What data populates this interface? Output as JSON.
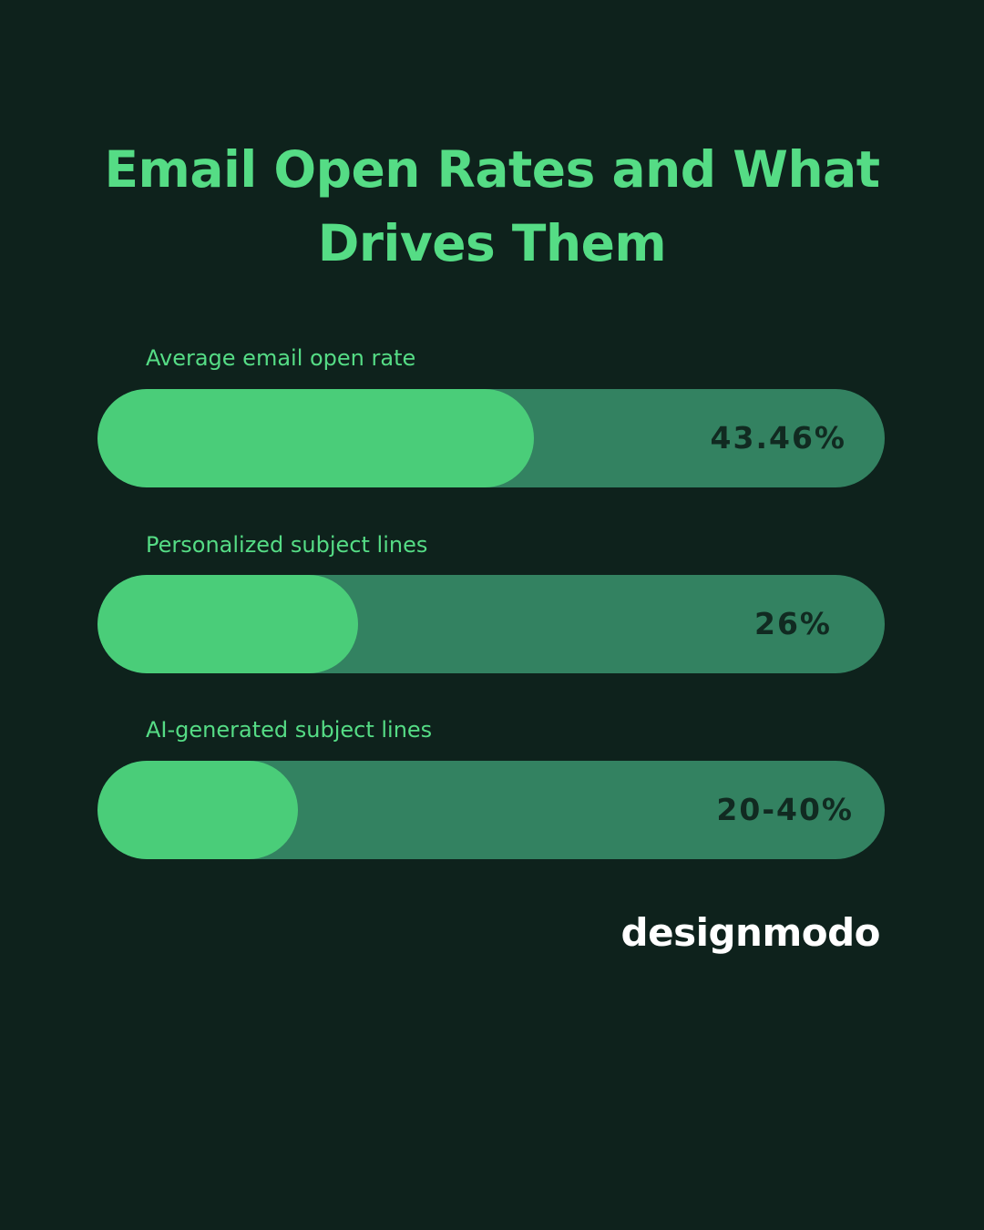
{
  "title_line1": "Email Open Rates and What",
  "title_line2": "Drives Them",
  "colors": {
    "background": "#0e221c",
    "accent": "#4acd79",
    "track": "#338261",
    "title": "#55dc85",
    "value_text": "#112a21"
  },
  "chart_data": {
    "type": "bar",
    "orientation": "horizontal",
    "categories": [
      "Average email open rate",
      "Personalized subject lines",
      "AI-generated subject lines"
    ],
    "value_labels": [
      "43.46%",
      "26%",
      "20-40%"
    ],
    "values": [
      43.46,
      26,
      20
    ],
    "units": "%",
    "grid": false,
    "legend": "none"
  },
  "brand": "designmodo"
}
